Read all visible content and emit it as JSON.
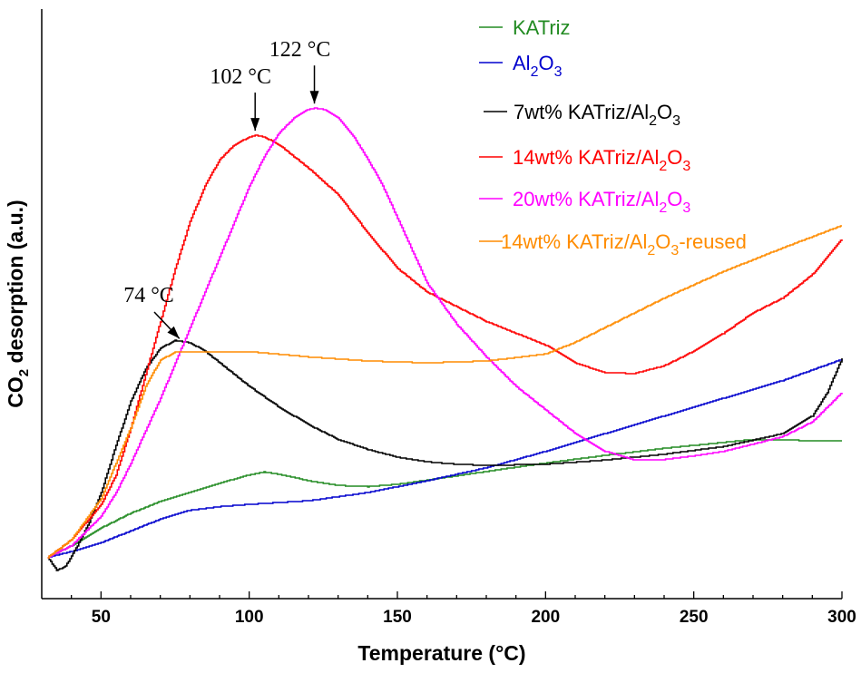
{
  "chart_data": {
    "type": "line",
    "xlabel": "Temperature (°C)",
    "ylabel_main": "CO",
    "ylabel_sub": "2",
    "ylabel_rest": " desorption (a.u.)",
    "xlim": [
      30,
      300
    ],
    "ylim": [
      0,
      100
    ],
    "xticks": [
      50,
      100,
      150,
      200,
      250,
      300
    ],
    "yticks_labeled": false,
    "grid": false,
    "legend_position": "top-right",
    "series": [
      {
        "name": "KATriz",
        "color": "#228B22",
        "legend": {
          "pre": "KATriz",
          "sub1": "",
          "mid": "",
          "sub2": "",
          "post": ""
        },
        "x": [
          32,
          40,
          50,
          60,
          70,
          80,
          90,
          100,
          105,
          110,
          120,
          130,
          140,
          150,
          160,
          175,
          190,
          200,
          220,
          240,
          260,
          270,
          280,
          300
        ],
        "y": [
          7,
          9,
          12,
          14.5,
          16.5,
          18,
          19.6,
          21,
          21.5,
          21.1,
          20,
          19.2,
          19,
          19.4,
          20.1,
          21.2,
          22.3,
          23,
          24.3,
          25.5,
          26.5,
          27,
          26.9,
          26.7
        ]
      },
      {
        "name": "Al2O3",
        "color": "#0000CD",
        "legend": {
          "pre": "Al",
          "sub1": "2",
          "mid": "O",
          "sub2": "3",
          "post": ""
        },
        "x": [
          32,
          40,
          50,
          60,
          70,
          80,
          90,
          100,
          120,
          140,
          160,
          180,
          200,
          220,
          240,
          260,
          280,
          300
        ],
        "y": [
          7,
          8,
          9.5,
          11.5,
          13.5,
          15,
          15.6,
          16,
          16.6,
          18,
          20,
          22.2,
          25,
          28,
          31,
          34,
          37,
          40.6
        ]
      },
      {
        "name": "7wt% KATriz/Al2O3",
        "color": "#000000",
        "legend": {
          "pre": "7wt% KATriz/Al",
          "sub1": "2",
          "mid": "O",
          "sub2": "3",
          "post": "",
          "indent": true
        },
        "x": [
          32,
          35,
          38,
          42,
          46,
          50,
          55,
          60,
          65,
          70,
          75,
          80,
          85,
          90,
          100,
          110,
          120,
          130,
          140,
          150,
          160,
          170,
          180,
          200,
          220,
          240,
          260,
          280,
          290,
          295,
          300
        ],
        "y": [
          7,
          4.8,
          5.5,
          9,
          13,
          18,
          26,
          33.5,
          39,
          42.5,
          43.8,
          43.4,
          42,
          40,
          36,
          32.5,
          29.5,
          27,
          25.3,
          24,
          23.2,
          22.8,
          22.6,
          22.8,
          23.5,
          24.5,
          25.8,
          28,
          31,
          35,
          40.8
        ]
      },
      {
        "name": "14wt% KATriz/Al2O3",
        "color": "#FF0000",
        "legend": {
          "pre": "14wt% KATriz/Al",
          "sub1": "2",
          "mid": "O",
          "sub2": "3",
          "post": ""
        },
        "x": [
          32,
          40,
          50,
          55,
          60,
          65,
          70,
          75,
          80,
          85,
          90,
          95,
          100,
          102,
          105,
          110,
          120,
          130,
          140,
          150,
          160,
          170,
          180,
          190,
          200,
          210,
          220,
          230,
          240,
          250,
          260,
          270,
          280,
          290,
          300
        ],
        "y": [
          7,
          10,
          16,
          21,
          29,
          38,
          47,
          56,
          64,
          70,
          74.5,
          77,
          78.3,
          78.6,
          78.3,
          77,
          73,
          68.5,
          62,
          56,
          52,
          49.5,
          47,
          45,
          43,
          40,
          38.3,
          38.2,
          39.5,
          42,
          45,
          48.5,
          51,
          55,
          61
        ]
      },
      {
        "name": "20wt% KATriz/Al2O3",
        "color": "#FF00FF",
        "legend": {
          "pre": "20wt% KATriz/Al",
          "sub1": "2",
          "mid": "O",
          "sub2": "3",
          "post": ""
        },
        "x": [
          32,
          40,
          50,
          55,
          60,
          65,
          70,
          75,
          80,
          85,
          90,
          95,
          100,
          105,
          110,
          115,
          120,
          122,
          125,
          130,
          135,
          140,
          145,
          150,
          155,
          160,
          170,
          180,
          190,
          200,
          210,
          220,
          230,
          240,
          250,
          260,
          270,
          280,
          290,
          300
        ],
        "y": [
          7,
          9,
          14,
          18,
          23,
          28.5,
          34,
          40,
          46,
          52,
          58,
          64,
          70,
          75,
          79,
          81.5,
          83,
          83.2,
          83,
          81.5,
          78.5,
          74.5,
          70,
          64.5,
          59,
          53.5,
          46.5,
          41,
          36,
          32,
          28,
          25,
          23.5,
          23.6,
          24.2,
          25,
          26.2,
          27.5,
          30,
          35
        ]
      },
      {
        "name": "14wt% KATriz/Al2O3-reused",
        "color": "#FF8C00",
        "legend": {
          "pre": "14wt% KATriz/Al",
          "sub1": "2",
          "mid": "O",
          "sub2": "3",
          "post": "-reused",
          "nogap": true
        },
        "x": [
          32,
          40,
          50,
          60,
          65,
          70,
          75,
          80,
          90,
          100,
          120,
          140,
          160,
          180,
          200,
          210,
          220,
          240,
          260,
          280,
          300
        ],
        "y": [
          7,
          10,
          17,
          29,
          36,
          40.5,
          41.8,
          41.9,
          41.9,
          41.9,
          41,
          40.3,
          40,
          40.3,
          41.5,
          43.5,
          46,
          51,
          55.5,
          59.5,
          63.3
        ]
      }
    ],
    "annotations": [
      {
        "text": "74 °C",
        "x": 74,
        "y": 43.8
      },
      {
        "text": "102 °C",
        "x": 102,
        "y": 78.6
      },
      {
        "text": "122 °C",
        "x": 122,
        "y": 83.2
      }
    ]
  }
}
